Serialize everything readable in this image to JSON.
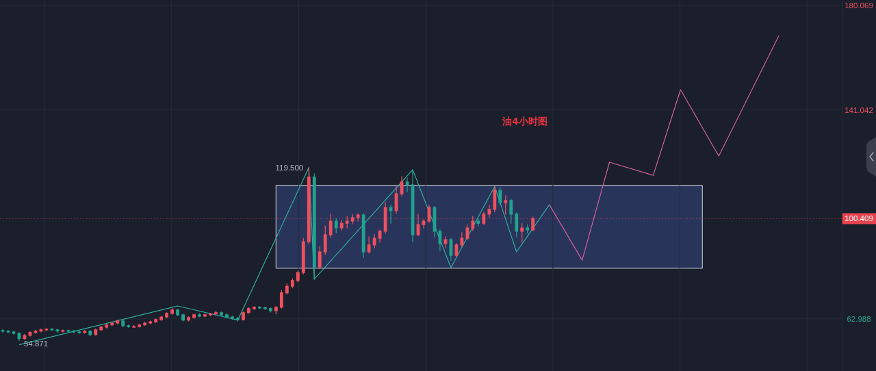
{
  "chart_data": {
    "type": "candlestick",
    "title": "油4小时图",
    "categories": [
      null,
      null,
      null,
      null,
      null,
      null,
      null,
      null,
      null,
      null,
      null,
      null,
      null,
      null,
      null,
      null,
      null,
      null,
      null,
      null,
      null,
      null,
      null,
      null,
      null,
      null,
      null,
      null,
      null,
      null,
      null,
      null,
      null,
      null,
      null,
      null,
      null,
      null,
      null,
      null,
      null,
      null,
      null,
      null,
      null,
      null,
      null,
      null,
      null,
      null,
      null,
      null,
      null,
      null,
      null,
      null,
      null,
      null,
      null,
      null,
      null,
      null,
      null,
      null,
      null,
      null,
      null,
      null,
      null,
      null,
      null,
      null,
      null,
      null,
      null,
      null,
      null,
      null,
      null,
      null,
      null,
      null,
      null,
      null,
      null,
      null,
      null,
      null,
      null,
      null,
      null,
      null,
      null,
      null,
      null,
      null,
      null,
      null,
      null,
      null,
      null,
      null,
      null,
      null,
      null,
      null,
      null,
      null,
      null,
      null,
      null,
      null,
      null,
      null,
      null,
      null,
      null,
      null,
      null,
      null,
      null,
      null,
      null,
      null,
      null,
      null,
      null,
      null,
      null,
      null,
      null,
      null,
      null,
      null,
      null,
      null,
      null,
      null,
      null,
      null,
      null,
      null,
      null,
      null,
      null,
      null,
      null,
      null,
      null,
      null,
      null,
      null,
      null,
      null
    ],
    "ohlc": [
      [
        58.6,
        59.0,
        58.0,
        58.4
      ],
      [
        58.4,
        58.7,
        57.8,
        58.1
      ],
      [
        58.1,
        58.3,
        57.2,
        57.6
      ],
      [
        57.6,
        57.8,
        54.871,
        55.6
      ],
      [
        55.6,
        57.2,
        55.3,
        56.8
      ],
      [
        56.8,
        58.2,
        56.5,
        57.9
      ],
      [
        57.9,
        58.7,
        57.6,
        58.4
      ],
      [
        58.4,
        59.2,
        58.1,
        58.9
      ],
      [
        58.9,
        59.5,
        58.6,
        59.1
      ],
      [
        59.1,
        59.4,
        58.6,
        58.9
      ],
      [
        58.9,
        59.1,
        58.0,
        58.4
      ],
      [
        58.4,
        58.9,
        58.1,
        58.6
      ],
      [
        58.6,
        58.8,
        58.0,
        58.4
      ],
      [
        58.4,
        58.7,
        57.8,
        58.1
      ],
      [
        58.1,
        58.4,
        57.5,
        57.9
      ],
      [
        57.9,
        58.7,
        57.6,
        58.4
      ],
      [
        58.4,
        58.6,
        56.7,
        57.1
      ],
      [
        57.1,
        59.2,
        56.9,
        58.9
      ],
      [
        58.9,
        60.2,
        58.6,
        59.9
      ],
      [
        59.9,
        61.0,
        59.6,
        60.7
      ],
      [
        60.7,
        61.7,
        60.4,
        61.4
      ],
      [
        61.4,
        62.5,
        61.1,
        62.2
      ],
      [
        62.2,
        62.4,
        60.1,
        60.4
      ],
      [
        60.4,
        60.7,
        59.8,
        60.1
      ],
      [
        60.1,
        60.5,
        59.8,
        60.1
      ],
      [
        60.1,
        61.0,
        59.9,
        60.7
      ],
      [
        60.7,
        61.7,
        60.5,
        61.4
      ],
      [
        61.4,
        62.2,
        61.1,
        61.9
      ],
      [
        61.9,
        63.0,
        61.6,
        62.7
      ],
      [
        62.7,
        64.0,
        62.4,
        63.7
      ],
      [
        63.7,
        65.3,
        63.4,
        65.0
      ],
      [
        65.0,
        66.8,
        64.7,
        66.3
      ],
      [
        66.3,
        66.6,
        64.2,
        64.5
      ],
      [
        64.5,
        64.8,
        62.2,
        62.5
      ],
      [
        62.5,
        63.8,
        62.2,
        63.5
      ],
      [
        63.5,
        64.8,
        63.2,
        64.5
      ],
      [
        64.5,
        64.9,
        63.7,
        64.0
      ],
      [
        64.0,
        64.8,
        63.7,
        64.5
      ],
      [
        64.5,
        65.1,
        64.2,
        64.8
      ],
      [
        64.8,
        65.8,
        64.5,
        65.3
      ],
      [
        65.3,
        65.6,
        64.2,
        64.5
      ],
      [
        64.5,
        64.8,
        63.4,
        63.7
      ],
      [
        63.7,
        64.0,
        62.9,
        63.2
      ],
      [
        63.2,
        63.5,
        62.2,
        62.7
      ],
      [
        62.7,
        65.6,
        62.5,
        65.3
      ],
      [
        65.3,
        67.1,
        65.0,
        66.8
      ],
      [
        66.8,
        67.6,
        66.5,
        67.3
      ],
      [
        67.3,
        67.6,
        66.8,
        67.1
      ],
      [
        67.1,
        67.4,
        66.5,
        66.8
      ],
      [
        66.8,
        67.1,
        65.5,
        66.0
      ],
      [
        66.0,
        67.6,
        64.8,
        67.3
      ],
      [
        67.3,
        73.5,
        67.0,
        72.7
      ],
      [
        72.7,
        76.0,
        72.2,
        75.2
      ],
      [
        75.2,
        78.0,
        74.5,
        77.3
      ],
      [
        77.3,
        80.8,
        76.8,
        80.3
      ],
      [
        80.3,
        93.0,
        79.8,
        91.8
      ],
      [
        91.8,
        119.5,
        91.0,
        116.0
      ],
      [
        116.0,
        117.2,
        77.8,
        82.4
      ],
      [
        82.4,
        90.0,
        81.6,
        88.0
      ],
      [
        88.0,
        97.6,
        87.0,
        94.4
      ],
      [
        94.4,
        102.1,
        93.5,
        99.5
      ],
      [
        99.5,
        100.5,
        95.2,
        97.0
      ],
      [
        97.0,
        99.8,
        96.0,
        98.7
      ],
      [
        98.7,
        101.3,
        97.0,
        99.5
      ],
      [
        99.5,
        102.0,
        98.5,
        100.8
      ],
      [
        100.8,
        102.3,
        99.5,
        101.8
      ],
      [
        101.8,
        102.3,
        86.0,
        88.0
      ],
      [
        88.0,
        93.6,
        87.5,
        90.6
      ],
      [
        90.6,
        94.5,
        89.5,
        93.1
      ],
      [
        93.1,
        96.2,
        91.6,
        95.7
      ],
      [
        95.7,
        106.4,
        95.0,
        104.6
      ],
      [
        104.6,
        105.4,
        98.7,
        103.4
      ],
      [
        103.4,
        112.3,
        102.5,
        109.7
      ],
      [
        109.7,
        116.1,
        109.0,
        114.1
      ],
      [
        114.1,
        115.6,
        110.5,
        113.0
      ],
      [
        113.0,
        118.2,
        91.8,
        94.4
      ],
      [
        94.4,
        102.1,
        94.0,
        98.2
      ],
      [
        98.2,
        100.0,
        97.0,
        99.5
      ],
      [
        99.5,
        105.4,
        99.0,
        104.6
      ],
      [
        104.6,
        105.0,
        93.6,
        95.7
      ],
      [
        95.7,
        96.2,
        88.5,
        91.1
      ],
      [
        91.1,
        93.6,
        89.5,
        92.6
      ],
      [
        92.6,
        93.1,
        84.9,
        86.7
      ],
      [
        86.7,
        91.1,
        86.0,
        90.6
      ],
      [
        90.6,
        95.2,
        90.0,
        93.1
      ],
      [
        93.1,
        98.2,
        92.6,
        96.9
      ],
      [
        96.9,
        101.3,
        96.0,
        99.5
      ],
      [
        99.5,
        100.3,
        97.7,
        98.7
      ],
      [
        98.7,
        102.8,
        98.2,
        102.1
      ],
      [
        102.1,
        105.4,
        101.0,
        103.9
      ],
      [
        103.9,
        112.3,
        103.0,
        111.0
      ],
      [
        111.0,
        112.0,
        105.4,
        106.4
      ],
      [
        106.4,
        109.0,
        102.1,
        107.2
      ],
      [
        107.2,
        107.7,
        98.7,
        102.1
      ],
      [
        102.1,
        102.6,
        93.6,
        95.7
      ],
      [
        95.7,
        98.5,
        91.8,
        96.9
      ],
      [
        96.9,
        98.2,
        95.0,
        96.2
      ],
      [
        96.2,
        101.0,
        95.8,
        100.409
      ],
      null,
      null,
      null,
      null,
      null,
      null,
      null,
      null,
      null,
      null,
      null,
      null,
      null,
      null,
      null,
      null,
      null,
      null,
      null,
      null,
      null,
      null,
      null,
      null,
      null,
      null,
      null,
      null,
      null,
      null,
      null,
      null,
      null,
      null,
      null,
      null,
      null,
      null,
      null,
      null,
      null,
      null,
      null,
      null,
      null,
      null,
      null,
      null,
      null,
      null,
      null,
      null,
      null,
      null,
      null,
      null
    ],
    "colors": [
      "#22a38f",
      "#22a38f",
      "#22a38f",
      "#22a38f",
      "#ef5160",
      "#ef5160",
      "#ef5160",
      "#ef5160",
      "#ef5160",
      "#22a38f",
      "#22a38f",
      "#ef5160",
      "#22a38f",
      "#22a38f",
      "#22a38f",
      "#ef5160",
      "#22a38f",
      "#ef5160",
      "#ef5160",
      "#ef5160",
      "#ef5160",
      "#ef5160",
      "#22a38f",
      "#22a38f",
      "#ef5160",
      "#ef5160",
      "#ef5160",
      "#ef5160",
      "#ef5160",
      "#ef5160",
      "#ef5160",
      "#ef5160",
      "#22a38f",
      "#22a38f",
      "#ef5160",
      "#ef5160",
      "#22a38f",
      "#ef5160",
      "#ef5160",
      "#ef5160",
      "#22a38f",
      "#22a38f",
      "#22a38f",
      "#22a38f",
      "#ef5160",
      "#ef5160",
      "#ef5160",
      "#22a38f",
      "#22a38f",
      "#22a38f",
      "#ef5160",
      "#ef5160",
      "#ef5160",
      "#ef5160",
      "#ef5160",
      "#ef5160",
      "#ef5160",
      "#22a38f",
      "#ef5160",
      "#ef5160",
      "#ef5160",
      "#22a38f",
      "#ef5160",
      "#ef5160",
      "#ef5160",
      "#ef5160",
      "#22a38f",
      "#ef5160",
      "#ef5160",
      "#ef5160",
      "#ef5160",
      "#22a38f",
      "#ef5160",
      "#ef5160",
      "#22a38f",
      "#22a38f",
      "#ef5160",
      "#ef5160",
      "#ef5160",
      "#22a38f",
      "#22a38f",
      "#ef5160",
      "#22a38f",
      "#ef5160",
      "#ef5160",
      "#ef5160",
      "#ef5160",
      "#22a38f",
      "#ef5160",
      "#ef5160",
      "#ef5160",
      "#22a38f",
      "#ef5160",
      "#22a38f",
      "#22a38f",
      "#ef5160",
      "#22a38f",
      "#ef5160",
      null,
      null,
      null,
      null,
      null,
      null,
      null,
      null,
      null,
      null,
      null,
      null,
      null,
      null,
      null,
      null,
      null,
      null,
      null,
      null,
      null,
      null,
      null,
      null,
      null,
      null,
      null,
      null,
      null,
      null,
      null,
      null,
      null,
      null,
      null,
      null,
      null,
      null,
      null,
      null,
      null,
      null,
      null,
      null,
      null,
      null,
      null,
      null,
      null,
      null,
      null,
      null,
      null,
      null,
      null,
      null
    ],
    "series": [
      {
        "type": "area",
        "color": "#29345a",
        "values": [
          null,
          null,
          null,
          null,
          null,
          null,
          null,
          null,
          null,
          null,
          null,
          null,
          null,
          null,
          null,
          null,
          null,
          null,
          null,
          null,
          null,
          null,
          null,
          null,
          null,
          null,
          null,
          null,
          null,
          null,
          null,
          null,
          null,
          null,
          null,
          null,
          null,
          null,
          null,
          null,
          null,
          null,
          null,
          null,
          null,
          null,
          null,
          null,
          null,
          null,
          null,
          null,
          null,
          null,
          null,
          null,
          null,
          null,
          null,
          null,
          null,
          null,
          null,
          null,
          null,
          null,
          null,
          null,
          null,
          null,
          null,
          null,
          null,
          null,
          null,
          null,
          null,
          null,
          null,
          null,
          null,
          null,
          null,
          null,
          null,
          null,
          null,
          null,
          null,
          null,
          null,
          null,
          null,
          null,
          null,
          null,
          null,
          null,
          null,
          null,
          null,
          null,
          null,
          null,
          null,
          null,
          null,
          null,
          null,
          null,
          null,
          null,
          null,
          null,
          null,
          null,
          null,
          null,
          null,
          null,
          null,
          null,
          null,
          null,
          null,
          null,
          null,
          null,
          null,
          null,
          null,
          null,
          null,
          null,
          null,
          null,
          null,
          null,
          null,
          null,
          null,
          null,
          null,
          null,
          null,
          null,
          null,
          null,
          null,
          null,
          null,
          null,
          null,
          null
        ],
        "upper": [
          null,
          null,
          null,
          null,
          null,
          null,
          null,
          null,
          null,
          null,
          null,
          null,
          null,
          null,
          null,
          null,
          null,
          null,
          null,
          null,
          null,
          null,
          null,
          null,
          null,
          null,
          null,
          null,
          null,
          null,
          null,
          null,
          null,
          null,
          null,
          null,
          null,
          null,
          null,
          null,
          null,
          null,
          null,
          null,
          null,
          null,
          null,
          null,
          null,
          null,
          112.8,
          112.8,
          112.8,
          112.8,
          112.8,
          112.8,
          112.8,
          112.8,
          112.8,
          112.8,
          112.8,
          112.8,
          112.8,
          112.8,
          112.8,
          112.8,
          112.8,
          112.8,
          112.8,
          112.8,
          112.8,
          112.8,
          112.8,
          112.8,
          112.8,
          112.8,
          112.8,
          112.8,
          112.8,
          112.8,
          112.8,
          112.8,
          112.8,
          112.8,
          112.8,
          112.8,
          112.8,
          112.8,
          112.8,
          112.8,
          112.8,
          112.8,
          112.8,
          112.8,
          112.8,
          112.8,
          112.8,
          112.8,
          112.8,
          112.8,
          112.8,
          112.8,
          112.8,
          112.8,
          112.8,
          112.8,
          112.8,
          112.8,
          112.8,
          112.8,
          112.8,
          112.8,
          112.8,
          112.8,
          112.8,
          112.8,
          112.8,
          112.8,
          112.8,
          112.8,
          112.8,
          112.8,
          112.8,
          112.8,
          112.8,
          112.8,
          112.8,
          112.8,
          112.8,
          null,
          null,
          null,
          null,
          null,
          null,
          null,
          null,
          null,
          null,
          null,
          null,
          null,
          null,
          null,
          null,
          null,
          null,
          null,
          null,
          null,
          null,
          null,
          null,
          null
        ],
        "lower": [
          null,
          null,
          null,
          null,
          null,
          null,
          null,
          null,
          null,
          null,
          null,
          null,
          null,
          null,
          null,
          null,
          null,
          null,
          null,
          null,
          null,
          null,
          null,
          null,
          null,
          null,
          null,
          null,
          null,
          null,
          null,
          null,
          null,
          null,
          null,
          null,
          null,
          null,
          null,
          null,
          null,
          null,
          null,
          null,
          null,
          null,
          null,
          null,
          null,
          null,
          81.9,
          81.9,
          81.9,
          81.9,
          81.9,
          81.9,
          81.9,
          81.9,
          81.9,
          81.9,
          81.9,
          81.9,
          81.9,
          81.9,
          81.9,
          81.9,
          81.9,
          81.9,
          81.9,
          81.9,
          81.9,
          81.9,
          81.9,
          81.9,
          81.9,
          81.9,
          81.9,
          81.9,
          81.9,
          81.9,
          81.9,
          81.9,
          81.9,
          81.9,
          81.9,
          81.9,
          81.9,
          81.9,
          81.9,
          81.9,
          81.9,
          81.9,
          81.9,
          81.9,
          81.9,
          81.9,
          81.9,
          81.9,
          81.9,
          81.9,
          81.9,
          81.9,
          81.9,
          81.9,
          81.9,
          81.9,
          81.9,
          81.9,
          81.9,
          81.9,
          81.9,
          81.9,
          81.9,
          81.9,
          81.9,
          81.9,
          81.9,
          81.9,
          81.9,
          81.9,
          81.9,
          81.9,
          81.9,
          81.9,
          81.9,
          81.9,
          81.9,
          81.9,
          81.9,
          null,
          null,
          null,
          null,
          null,
          null,
          null,
          null,
          null,
          null,
          null,
          null,
          null,
          null,
          null,
          null,
          null,
          null,
          null,
          null,
          null,
          null,
          null,
          null,
          null
        ]
      },
      {
        "type": "line",
        "color": "#2fae9c",
        "values": [
          null,
          null,
          null,
          53.3,
          null,
          null,
          null,
          null,
          null,
          null,
          null,
          null,
          null,
          null,
          null,
          null,
          null,
          null,
          null,
          null,
          null,
          null,
          null,
          null,
          null,
          null,
          null,
          null,
          null,
          null,
          null,
          null,
          67.8,
          null,
          null,
          null,
          null,
          null,
          null,
          null,
          null,
          null,
          null,
          62.5,
          null,
          null,
          null,
          null,
          null,
          null,
          null,
          null,
          null,
          null,
          null,
          null,
          119.5,
          77.8,
          null,
          null,
          null,
          null,
          null,
          null,
          null,
          null,
          null,
          null,
          null,
          null,
          null,
          null,
          null,
          null,
          null,
          118.7,
          null,
          null,
          null,
          null,
          null,
          null,
          82.1,
          null,
          null,
          null,
          null,
          null,
          null,
          null,
          112.5,
          null,
          null,
          null,
          88.0,
          null,
          null,
          null,
          null,
          null,
          105.6,
          null,
          null,
          null,
          null,
          null,
          null,
          null,
          null,
          null,
          null,
          null,
          null,
          null,
          null,
          null,
          null,
          null,
          null,
          null,
          null,
          null,
          null,
          null,
          null,
          null,
          null,
          null,
          null,
          null,
          null,
          null,
          null,
          null,
          null,
          null,
          null,
          null,
          null,
          null,
          null,
          null,
          null,
          null,
          null,
          null,
          null,
          null,
          null,
          null,
          null,
          null,
          null,
          null
        ]
      },
      {
        "type": "line",
        "color": "#d2609e",
        "values": [
          null,
          null,
          null,
          null,
          null,
          null,
          null,
          null,
          null,
          null,
          null,
          null,
          null,
          null,
          null,
          null,
          null,
          null,
          null,
          null,
          null,
          null,
          null,
          null,
          null,
          null,
          null,
          null,
          null,
          null,
          null,
          null,
          null,
          null,
          null,
          null,
          null,
          null,
          null,
          null,
          null,
          null,
          null,
          null,
          null,
          null,
          null,
          null,
          null,
          null,
          null,
          null,
          null,
          null,
          null,
          null,
          null,
          null,
          null,
          null,
          null,
          null,
          null,
          null,
          null,
          null,
          null,
          null,
          null,
          null,
          null,
          null,
          null,
          null,
          null,
          null,
          null,
          null,
          null,
          null,
          null,
          null,
          null,
          null,
          null,
          null,
          null,
          null,
          null,
          null,
          null,
          null,
          null,
          null,
          null,
          null,
          null,
          null,
          null,
          null,
          105.6,
          null,
          null,
          null,
          null,
          null,
          84.9,
          null,
          null,
          null,
          null,
          121.5,
          null,
          null,
          null,
          null,
          null,
          null,
          null,
          116.6,
          null,
          null,
          null,
          null,
          148.6,
          null,
          null,
          null,
          null,
          null,
          null,
          123.8,
          null,
          null,
          null,
          null,
          null,
          null,
          null,
          null,
          null,
          null,
          168.8,
          null,
          null,
          null,
          null,
          null,
          null,
          null,
          null,
          null,
          null,
          null
        ]
      }
    ],
    "ylim": [
      43.5,
      182.1
    ],
    "yticks": [
      62.988,
      141.042,
      180.069
    ],
    "grid": true,
    "ref_lines": [
      {
        "axis": "y",
        "value": 100.409,
        "label": "100.409",
        "color": "#e8434f",
        "line_style": "dotted"
      }
    ],
    "annotations": [
      "119.500",
      {
        "text": "54.871",
        "y": 54.871
      }
    ]
  }
}
